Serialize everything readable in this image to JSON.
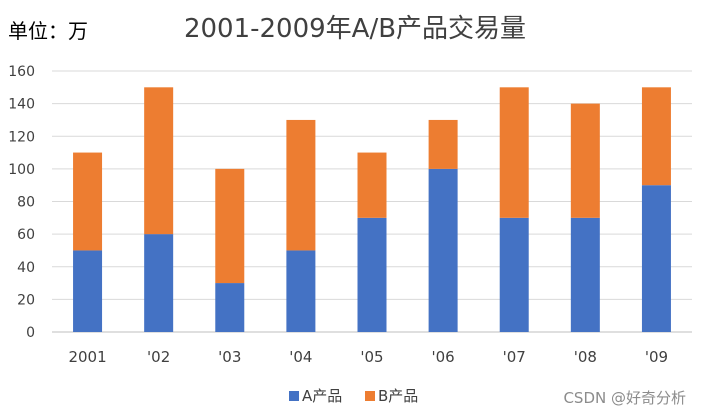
{
  "unit_label": "单位：万",
  "watermark": "CSDN @好奇分析",
  "chart_data": {
    "type": "bar",
    "stacked": true,
    "title": "2001-2009年A/B产品交易量",
    "categories": [
      "2001",
      "'02",
      "'03",
      "'04",
      "'05",
      "'06",
      "'07",
      "'08",
      "'09"
    ],
    "series": [
      {
        "name": "A产品",
        "color": "#4472C4",
        "values": [
          50,
          60,
          30,
          50,
          70,
          100,
          70,
          70,
          90
        ]
      },
      {
        "name": "B产品",
        "color": "#ED7D31",
        "values": [
          60,
          90,
          70,
          80,
          40,
          30,
          80,
          70,
          60
        ]
      }
    ],
    "ylim": [
      0,
      160
    ],
    "yticks": [
      0,
      20,
      40,
      60,
      80,
      100,
      120,
      140,
      160
    ],
    "grid": true,
    "legend_position": "bottom"
  }
}
